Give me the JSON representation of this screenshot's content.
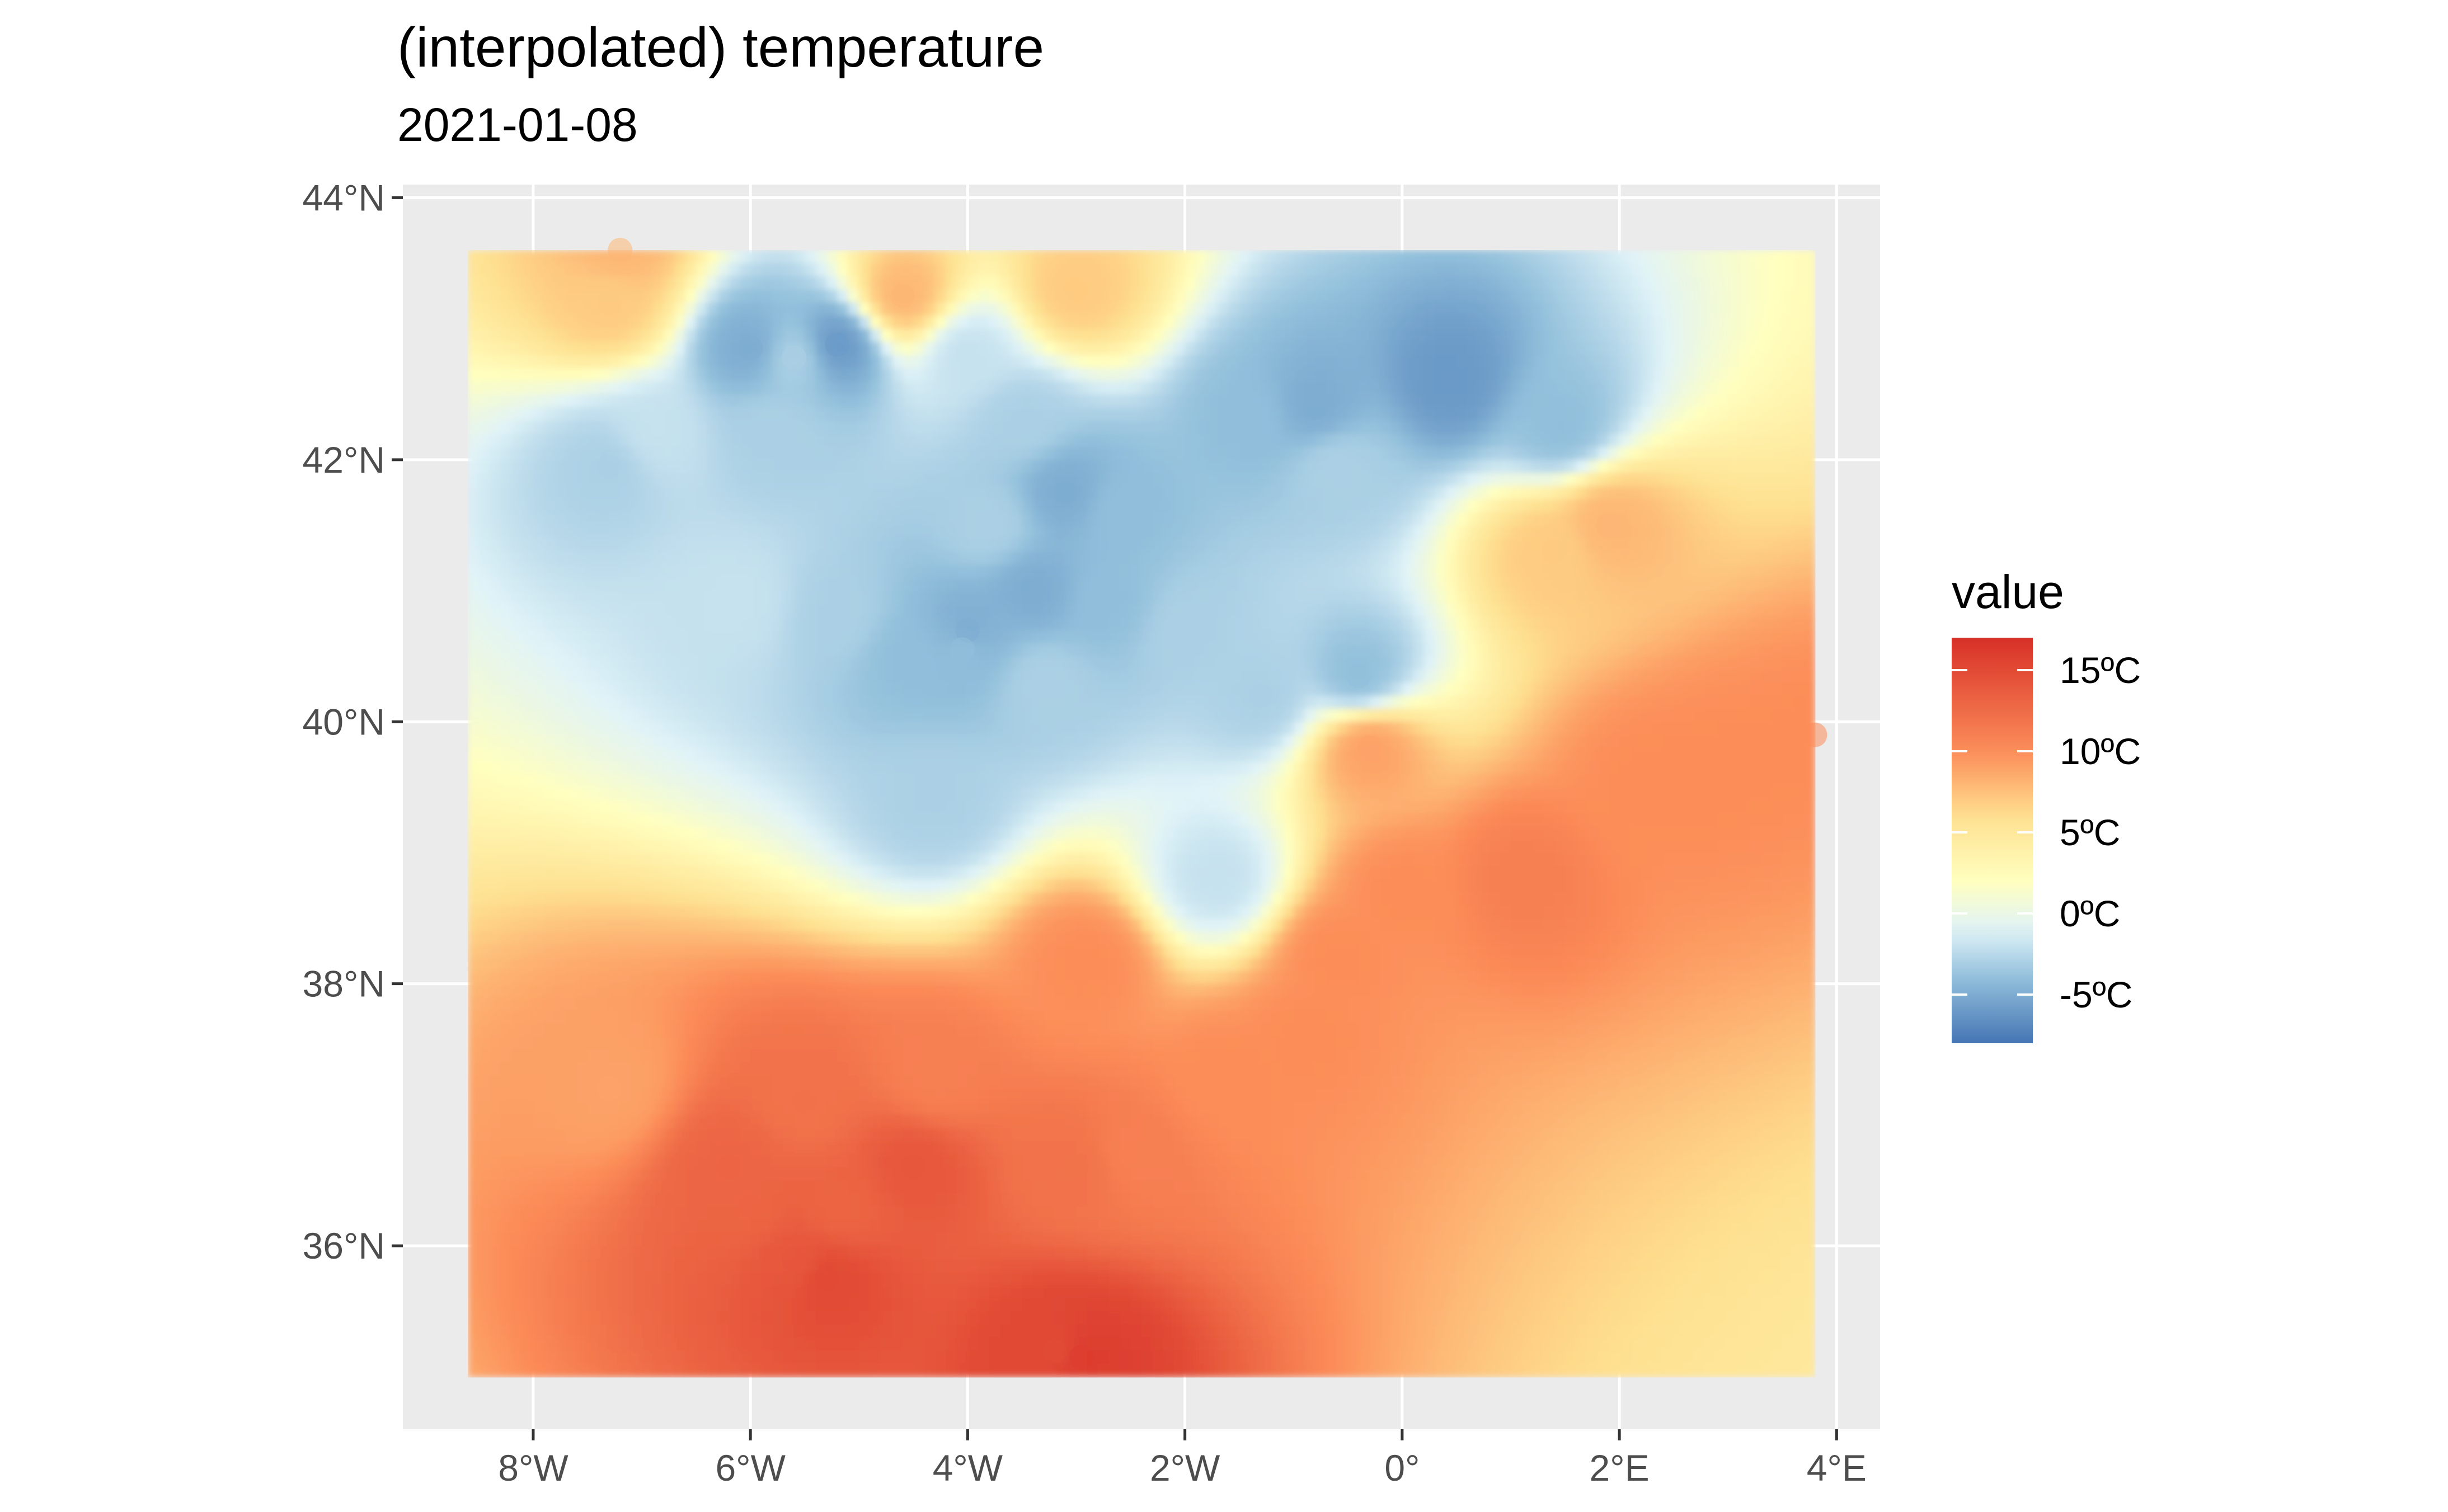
{
  "chart_data": {
    "type": "heatmap",
    "title": "(interpolated) temperature",
    "subtitle": "2021-01-08",
    "xlabel": "",
    "ylabel": "",
    "x_ticks": [
      "8°W",
      "6°W",
      "4°W",
      "2°W",
      "0°",
      "2°E",
      "4°E"
    ],
    "x_tick_values": [
      -8,
      -6,
      -4,
      -2,
      0,
      2,
      4
    ],
    "y_ticks": [
      "44°N",
      "42°N",
      "40°N",
      "38°N",
      "36°N"
    ],
    "y_tick_values": [
      44,
      42,
      40,
      38,
      36
    ],
    "xlim": [
      -9.2,
      4.4
    ],
    "ylim": [
      34.6,
      44.1
    ],
    "data_extent": {
      "lon": [
        -8.6,
        3.8
      ],
      "lat": [
        35.0,
        43.6
      ]
    },
    "grid": true,
    "legend": {
      "title": "value",
      "placement": "right",
      "labels": [
        "15ºC",
        "10ºC",
        "5ºC",
        "0ºC",
        "-5ºC"
      ],
      "values": [
        15,
        10,
        5,
        0,
        -5
      ],
      "range": [
        -8,
        17
      ],
      "colors": [
        "#4575b4",
        "#91bfdb",
        "#e0f3f8",
        "#ffffbf",
        "#fee090",
        "#fc8d59",
        "#d73027"
      ]
    },
    "background_value": 4,
    "stations": [
      {
        "lon": -6.0,
        "lat": 42.85,
        "value": -5
      },
      {
        "lon": -5.2,
        "lat": 42.88,
        "value": -6
      },
      {
        "lon": -5.6,
        "lat": 42.78,
        "value": -3
      },
      {
        "lon": -4.0,
        "lat": 42.8,
        "value": -2
      },
      {
        "lon": -5.8,
        "lat": 42.2,
        "value": -3
      },
      {
        "lon": -6.9,
        "lat": 42.2,
        "value": -2
      },
      {
        "lon": -7.3,
        "lat": 41.95,
        "value": -3
      },
      {
        "lon": -3.1,
        "lat": 41.75,
        "value": -5
      },
      {
        "lon": -2.6,
        "lat": 41.6,
        "value": -4
      },
      {
        "lon": -3.8,
        "lat": 41.5,
        "value": -3
      },
      {
        "lon": -3.4,
        "lat": 41.0,
        "value": -5
      },
      {
        "lon": -2.7,
        "lat": 40.9,
        "value": -4
      },
      {
        "lon": -4.0,
        "lat": 40.7,
        "value": -5
      },
      {
        "lon": -4.05,
        "lat": 40.55,
        "value": -4
      },
      {
        "lon": -4.55,
        "lat": 40.5,
        "value": -4
      },
      {
        "lon": -5.2,
        "lat": 40.8,
        "value": -3
      },
      {
        "lon": -6.1,
        "lat": 40.9,
        "value": -2
      },
      {
        "lon": -3.3,
        "lat": 40.3,
        "value": -3
      },
      {
        "lon": -2.0,
        "lat": 40.7,
        "value": -3
      },
      {
        "lon": -1.3,
        "lat": 40.2,
        "value": -3
      },
      {
        "lon": -0.4,
        "lat": 40.35,
        "value": -4
      },
      {
        "lon": -0.8,
        "lat": 42.4,
        "value": -5
      },
      {
        "lon": -1.4,
        "lat": 42.3,
        "value": -4
      },
      {
        "lon": 0.45,
        "lat": 42.6,
        "value": -6
      },
      {
        "lon": 1.45,
        "lat": 42.25,
        "value": -4
      },
      {
        "lon": -0.6,
        "lat": 41.95,
        "value": -3
      },
      {
        "lon": -4.3,
        "lat": 39.4,
        "value": -3
      },
      {
        "lon": -1.7,
        "lat": 38.8,
        "value": -2
      },
      {
        "lon": -3.5,
        "lat": 42.3,
        "value": -3
      },
      {
        "lon": -7.3,
        "lat": 43.2,
        "value": 7
      },
      {
        "lon": -4.6,
        "lat": 43.25,
        "value": 8
      },
      {
        "lon": -3.0,
        "lat": 43.3,
        "value": 7
      },
      {
        "lon": -7.2,
        "lat": 43.6,
        "value": 8
      },
      {
        "lon": 1.9,
        "lat": 41.5,
        "value": 8
      },
      {
        "lon": 1.4,
        "lat": 41.3,
        "value": 7
      },
      {
        "lon": -0.3,
        "lat": 39.8,
        "value": 9
      },
      {
        "lon": 2.3,
        "lat": 39.55,
        "value": 10
      },
      {
        "lon": 2.65,
        "lat": 39.55,
        "value": 10
      },
      {
        "lon": 3.1,
        "lat": 39.7,
        "value": 10
      },
      {
        "lon": 3.8,
        "lat": 39.9,
        "value": 10
      },
      {
        "lon": 1.1,
        "lat": 38.8,
        "value": 11
      },
      {
        "lon": 0.0,
        "lat": 38.7,
        "value": 10
      },
      {
        "lon": -0.6,
        "lat": 38.2,
        "value": 10
      },
      {
        "lon": -0.9,
        "lat": 37.6,
        "value": 10
      },
      {
        "lon": -1.6,
        "lat": 37.3,
        "value": 10
      },
      {
        "lon": -2.9,
        "lat": 38.15,
        "value": 10
      },
      {
        "lon": -5.5,
        "lat": 37.1,
        "value": 12
      },
      {
        "lon": -6.2,
        "lat": 36.6,
        "value": 13
      },
      {
        "lon": -6.0,
        "lat": 36.3,
        "value": 13
      },
      {
        "lon": -5.6,
        "lat": 35.9,
        "value": 14
      },
      {
        "lon": -5.3,
        "lat": 35.75,
        "value": 15
      },
      {
        "lon": -5.2,
        "lat": 36.3,
        "value": 13
      },
      {
        "lon": -4.5,
        "lat": 36.6,
        "value": 14
      },
      {
        "lon": -3.0,
        "lat": 36.6,
        "value": 12
      },
      {
        "lon": -2.5,
        "lat": 36.7,
        "value": 11
      },
      {
        "lon": -4.3,
        "lat": 37.3,
        "value": 11
      },
      {
        "lon": -3.2,
        "lat": 35.2,
        "value": 15
      },
      {
        "lon": -2.95,
        "lat": 35.15,
        "value": 16
      },
      {
        "lon": -7.3,
        "lat": 37.2,
        "value": 9
      }
    ]
  }
}
